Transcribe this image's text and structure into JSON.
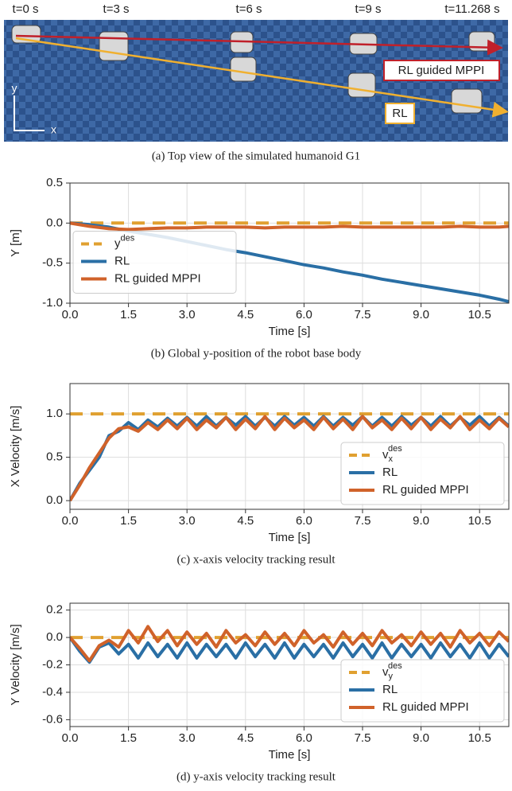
{
  "panel_a": {
    "time_labels": [
      "t=0 s",
      "t=3 s",
      "t=6 s",
      "t=9 s",
      "t=11.268 s"
    ],
    "path_labels": [
      "RL guided MPPI",
      "RL"
    ],
    "axis_labels": [
      "y",
      "x"
    ],
    "caption": "(a) Top view of the simulated humanoid G1"
  },
  "chart_data": [
    {
      "type": "line",
      "caption": "(b) Global y-position of the robot base body",
      "x_label": "Time [s]",
      "y_label": "Y [m]",
      "grid": true,
      "legend": "center left",
      "xlim": [
        0,
        11.25
      ],
      "ylim": [
        -1,
        0.5
      ],
      "xticks": [
        {
          "value": 0,
          "label": "0.0"
        },
        1.5,
        {
          "value": 3,
          "label": "3.0"
        },
        4.5,
        {
          "value": 6,
          "label": "6.0"
        },
        7.5,
        {
          "value": 9,
          "label": "9.0"
        },
        10.5
      ],
      "yticks": [
        0.5,
        {
          "value": 0,
          "label": "0.0"
        },
        -0.5,
        {
          "value": -1,
          "label": "-1.0"
        }
      ],
      "x": [
        0,
        0.5,
        1,
        1.5,
        2,
        2.5,
        3,
        3.5,
        4,
        4.5,
        5,
        5.5,
        6,
        6.5,
        7,
        7.5,
        8,
        8.5,
        9,
        9.5,
        10,
        10.5,
        11,
        11.25
      ],
      "series": [
        {
          "name": "y",
          "sup": "des",
          "color": "#e0a030",
          "dashed": true,
          "values": [
            0,
            0,
            0,
            0,
            0,
            0,
            0,
            0,
            0,
            0,
            0,
            0,
            0,
            0,
            0,
            0,
            0,
            0,
            0,
            0,
            0,
            0,
            0,
            0
          ]
        },
        {
          "name": "RL",
          "color": "#2a6fa5",
          "values": [
            0,
            -0.02,
            -0.05,
            -0.1,
            -0.14,
            -0.18,
            -0.23,
            -0.28,
            -0.33,
            -0.37,
            -0.42,
            -0.47,
            -0.52,
            -0.56,
            -0.61,
            -0.65,
            -0.7,
            -0.74,
            -0.78,
            -0.82,
            -0.86,
            -0.9,
            -0.95,
            -0.98
          ]
        },
        {
          "name": "RL guided MPPI",
          "color": "#d0622a",
          "values": [
            0,
            -0.04,
            -0.07,
            -0.08,
            -0.07,
            -0.06,
            -0.06,
            -0.05,
            -0.05,
            -0.05,
            -0.06,
            -0.05,
            -0.05,
            -0.05,
            -0.04,
            -0.05,
            -0.05,
            -0.05,
            -0.05,
            -0.05,
            -0.04,
            -0.05,
            -0.05,
            -0.04
          ]
        }
      ]
    },
    {
      "type": "line",
      "caption": "(c) x-axis velocity tracking result",
      "x_label": "Time [s]",
      "y_label": "X Velocity [m/s]",
      "grid": true,
      "legend": "lower right",
      "xlim": [
        0,
        11.25
      ],
      "ylim": [
        -0.1,
        1.35
      ],
      "xticks": [
        {
          "value": 0,
          "label": "0.0"
        },
        1.5,
        {
          "value": 3,
          "label": "3.0"
        },
        4.5,
        {
          "value": 6,
          "label": "6.0"
        },
        7.5,
        {
          "value": 9,
          "label": "9.0"
        },
        10.5
      ],
      "yticks": [
        {
          "value": 0,
          "label": "0.0"
        },
        0.5,
        {
          "value": 1,
          "label": "1.0"
        }
      ],
      "x": [
        0,
        0.25,
        0.5,
        0.75,
        1,
        1.25,
        1.5,
        1.75,
        2,
        2.25,
        2.5,
        2.75,
        3,
        3.25,
        3.5,
        3.75,
        4,
        4.25,
        4.5,
        4.75,
        5,
        5.25,
        5.5,
        5.75,
        6,
        6.25,
        6.5,
        6.75,
        7,
        7.25,
        7.5,
        7.75,
        8,
        8.25,
        8.5,
        8.75,
        9,
        9.25,
        9.5,
        9.75,
        10,
        10.25,
        10.5,
        10.75,
        11,
        11.25
      ],
      "series": [
        {
          "name": "v",
          "sub": "x",
          "sup": "des",
          "color": "#e0a030",
          "dashed": true,
          "values": [
            1,
            1,
            1,
            1,
            1,
            1,
            1,
            1,
            1,
            1,
            1,
            1,
            1,
            1,
            1,
            1,
            1,
            1,
            1,
            1,
            1,
            1,
            1,
            1,
            1,
            1,
            1,
            1,
            1,
            1,
            1,
            1,
            1,
            1,
            1,
            1,
            1,
            1,
            1,
            1,
            1,
            1,
            1,
            1,
            1,
            1
          ]
        },
        {
          "name": "RL",
          "color": "#2a6fa5",
          "values": [
            0,
            0.2,
            0.35,
            0.5,
            0.75,
            0.8,
            0.9,
            0.82,
            0.93,
            0.85,
            0.95,
            0.86,
            0.96,
            0.86,
            0.97,
            0.86,
            0.96,
            0.87,
            0.97,
            0.86,
            0.96,
            0.86,
            0.97,
            0.87,
            0.96,
            0.86,
            0.97,
            0.86,
            0.96,
            0.87,
            0.97,
            0.86,
            0.96,
            0.86,
            0.97,
            0.87,
            0.96,
            0.86,
            0.97,
            0.86,
            0.96,
            0.87,
            0.97,
            0.86,
            0.96,
            0.86
          ]
        },
        {
          "name": "RL guided MPPI",
          "color": "#d0622a",
          "values": [
            0,
            0.18,
            0.38,
            0.55,
            0.72,
            0.83,
            0.85,
            0.8,
            0.9,
            0.82,
            0.93,
            0.83,
            0.95,
            0.82,
            0.93,
            0.84,
            0.96,
            0.82,
            0.94,
            0.83,
            0.97,
            0.82,
            0.95,
            0.84,
            0.93,
            0.82,
            0.96,
            0.83,
            0.94,
            0.82,
            0.97,
            0.84,
            0.93,
            0.82,
            0.95,
            0.83,
            0.96,
            0.82,
            0.94,
            0.84,
            0.97,
            0.82,
            0.93,
            0.83,
            0.95,
            0.85
          ]
        }
      ]
    },
    {
      "type": "line",
      "caption": "(d) y-axis velocity tracking result",
      "x_label": "Time [s]",
      "y_label": "Y Velocity [m/s]",
      "grid": true,
      "legend": "lower right",
      "xlim": [
        0,
        11.25
      ],
      "ylim": [
        -0.65,
        0.25
      ],
      "xticks": [
        {
          "value": 0,
          "label": "0.0"
        },
        1.5,
        {
          "value": 3,
          "label": "3.0"
        },
        4.5,
        {
          "value": 6,
          "label": "6.0"
        },
        7.5,
        {
          "value": 9,
          "label": "9.0"
        },
        10.5
      ],
      "yticks": [
        0.2,
        {
          "value": 0,
          "label": "0.0"
        },
        -0.2,
        -0.4,
        -0.6
      ],
      "x": [
        0,
        0.25,
        0.5,
        0.75,
        1,
        1.25,
        1.5,
        1.75,
        2,
        2.25,
        2.5,
        2.75,
        3,
        3.25,
        3.5,
        3.75,
        4,
        4.25,
        4.5,
        4.75,
        5,
        5.25,
        5.5,
        5.75,
        6,
        6.25,
        6.5,
        6.75,
        7,
        7.25,
        7.5,
        7.75,
        8,
        8.25,
        8.5,
        8.75,
        9,
        9.25,
        9.5,
        9.75,
        10,
        10.25,
        10.5,
        10.75,
        11,
        11.25
      ],
      "series": [
        {
          "name": "v",
          "sub": "y",
          "sup": "des",
          "color": "#e0a030",
          "dashed": true,
          "values": [
            0,
            0,
            0,
            0,
            0,
            0,
            0,
            0,
            0,
            0,
            0,
            0,
            0,
            0,
            0,
            0,
            0,
            0,
            0,
            0,
            0,
            0,
            0,
            0,
            0,
            0,
            0,
            0,
            0,
            0,
            0,
            0,
            0,
            0,
            0,
            0,
            0,
            0,
            0,
            0,
            0,
            0,
            0,
            0,
            0,
            0
          ]
        },
        {
          "name": "RL",
          "color": "#2a6fa5",
          "values": [
            0,
            -0.1,
            -0.18,
            -0.07,
            -0.04,
            -0.12,
            -0.05,
            -0.15,
            -0.04,
            -0.14,
            -0.05,
            -0.15,
            -0.04,
            -0.15,
            -0.05,
            -0.14,
            -0.05,
            -0.15,
            -0.04,
            -0.14,
            -0.05,
            -0.15,
            -0.04,
            -0.15,
            -0.05,
            -0.14,
            -0.05,
            -0.15,
            -0.04,
            -0.14,
            -0.05,
            -0.15,
            -0.04,
            -0.15,
            -0.05,
            -0.14,
            -0.05,
            -0.15,
            -0.04,
            -0.14,
            -0.05,
            -0.15,
            -0.04,
            -0.15,
            -0.05,
            -0.14
          ]
        },
        {
          "name": "RL guided MPPI",
          "color": "#d0622a",
          "values": [
            0,
            -0.08,
            -0.17,
            -0.06,
            -0.02,
            -0.07,
            0.05,
            -0.04,
            0.08,
            -0.03,
            0.05,
            -0.06,
            0.04,
            -0.05,
            0.03,
            -0.07,
            0.05,
            -0.04,
            0.02,
            -0.06,
            0.04,
            -0.05,
            0.03,
            -0.06,
            0.05,
            -0.04,
            0.02,
            -0.07,
            0.04,
            -0.05,
            0.03,
            -0.06,
            0.05,
            -0.04,
            0.02,
            -0.06,
            0.04,
            -0.05,
            0.03,
            -0.07,
            0.05,
            -0.04,
            0.03,
            -0.06,
            0.04,
            -0.03
          ]
        }
      ]
    }
  ]
}
